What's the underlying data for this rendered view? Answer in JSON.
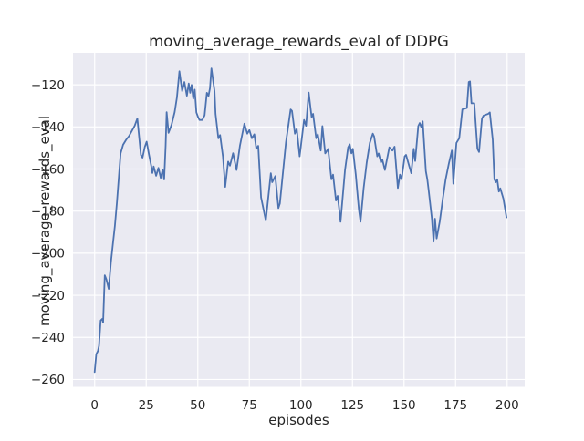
{
  "chart_data": {
    "type": "line",
    "title": "moving_average_rewards_eval of DDPG",
    "xlabel": "episodes",
    "ylabel": "moving_average_rewards_eval",
    "x_ticks": [
      0,
      25,
      50,
      75,
      100,
      125,
      150,
      175,
      200
    ],
    "y_ticks": [
      -120,
      -140,
      -160,
      -180,
      -200,
      -220,
      -240,
      -260
    ],
    "xlim": [
      -10.5,
      208.5
    ],
    "ylim": [
      -263.5,
      -104.8
    ],
    "grid": true,
    "legend": false,
    "style": "seaborn-darkgrid",
    "colors": {
      "line": "#4c72b0",
      "plot_background": "#eaeaf2",
      "grid": "#ffffff",
      "text": "#262626"
    },
    "series": [
      {
        "name": "moving_average_rewards_eval",
        "points": [
          [
            0,
            -256.5
          ],
          [
            0.8,
            -248
          ],
          [
            1.6,
            -246.5
          ],
          [
            2.1,
            -244
          ],
          [
            2.9,
            -232
          ],
          [
            3.7,
            -231.2
          ],
          [
            4.1,
            -233
          ],
          [
            4.9,
            -210.5
          ],
          [
            5.7,
            -212.5
          ],
          [
            6.8,
            -217
          ],
          [
            7.9,
            -204
          ],
          [
            8.8,
            -196
          ],
          [
            9.8,
            -187
          ],
          [
            10.8,
            -176
          ],
          [
            11.7,
            -164
          ],
          [
            12.6,
            -152.5
          ],
          [
            13.8,
            -148.5
          ],
          [
            15.2,
            -146.2
          ],
          [
            16.6,
            -144.4
          ],
          [
            18,
            -142
          ],
          [
            19.4,
            -139.5
          ],
          [
            20.7,
            -136
          ],
          [
            22.4,
            -153.3
          ],
          [
            23.2,
            -154.6
          ],
          [
            24.3,
            -149.5
          ],
          [
            25.2,
            -147
          ],
          [
            26.3,
            -153
          ],
          [
            27.4,
            -158.4
          ],
          [
            28,
            -161.9
          ],
          [
            28.6,
            -158.8
          ],
          [
            29.8,
            -163.2
          ],
          [
            30.9,
            -159.5
          ],
          [
            32,
            -164.2
          ],
          [
            33,
            -160.3
          ],
          [
            33.7,
            -165
          ],
          [
            34.4,
            -149
          ],
          [
            34.9,
            -133
          ],
          [
            35.8,
            -142.8
          ],
          [
            37.3,
            -139
          ],
          [
            38.8,
            -133
          ],
          [
            39.9,
            -126
          ],
          [
            41.1,
            -113.6
          ],
          [
            42.4,
            -123
          ],
          [
            43.5,
            -118.7
          ],
          [
            44.7,
            -125.2
          ],
          [
            45.6,
            -119.4
          ],
          [
            46.3,
            -123.8
          ],
          [
            47,
            -120.1
          ],
          [
            47.8,
            -126.6
          ],
          [
            48.5,
            -122.3
          ],
          [
            49.3,
            -133.1
          ],
          [
            50.1,
            -135.3
          ],
          [
            50.8,
            -136.7
          ],
          [
            52.2,
            -136.7
          ],
          [
            53.3,
            -134.5
          ],
          [
            54.4,
            -123.8
          ],
          [
            55.2,
            -125.3
          ],
          [
            55.9,
            -121.6
          ],
          [
            56.6,
            -112.2
          ],
          [
            58.1,
            -123
          ],
          [
            58.6,
            -133.8
          ],
          [
            60,
            -145.4
          ],
          [
            60.8,
            -143.9
          ],
          [
            62.2,
            -154
          ],
          [
            63.3,
            -168.5
          ],
          [
            64.7,
            -156.5
          ],
          [
            65.6,
            -158.4
          ],
          [
            67.1,
            -152.5
          ],
          [
            68.8,
            -160.5
          ],
          [
            70.4,
            -149
          ],
          [
            72.6,
            -138.5
          ],
          [
            74,
            -143.2
          ],
          [
            75,
            -141.5
          ],
          [
            76.2,
            -145.4
          ],
          [
            77.4,
            -143.5
          ],
          [
            78.4,
            -150.4
          ],
          [
            79.3,
            -149
          ],
          [
            80.7,
            -173.5
          ],
          [
            83,
            -184.5
          ],
          [
            85.4,
            -162
          ],
          [
            86.1,
            -166.3
          ],
          [
            87.6,
            -163.4
          ],
          [
            89.1,
            -178.6
          ],
          [
            89.8,
            -176.4
          ],
          [
            92.7,
            -147.6
          ],
          [
            95,
            -131.7
          ],
          [
            95.7,
            -132.4
          ],
          [
            97.1,
            -143.2
          ],
          [
            98,
            -141
          ],
          [
            99.4,
            -154
          ],
          [
            101.5,
            -136.7
          ],
          [
            102.5,
            -139.5
          ],
          [
            103.8,
            -123.7
          ],
          [
            105.2,
            -135.3
          ],
          [
            105.9,
            -133.8
          ],
          [
            107.4,
            -145.4
          ],
          [
            108.2,
            -143.5
          ],
          [
            109.6,
            -151.2
          ],
          [
            110.4,
            -139.6
          ],
          [
            111.8,
            -152.6
          ],
          [
            113.2,
            -150.5
          ],
          [
            114.8,
            -164.9
          ],
          [
            115.6,
            -162.7
          ],
          [
            117,
            -175
          ],
          [
            117.8,
            -172.8
          ],
          [
            118.5,
            -178.6
          ],
          [
            119.2,
            -185.1
          ],
          [
            121.4,
            -160.5
          ],
          [
            122.9,
            -149.7
          ],
          [
            123.7,
            -148.3
          ],
          [
            124.5,
            -152.6
          ],
          [
            125.2,
            -150.4
          ],
          [
            126.6,
            -162.7
          ],
          [
            128.1,
            -179.3
          ],
          [
            128.9,
            -185.1
          ],
          [
            130.4,
            -169.2
          ],
          [
            131.9,
            -156.9
          ],
          [
            133.4,
            -147.6
          ],
          [
            134.9,
            -143.2
          ],
          [
            135.5,
            -144.5
          ],
          [
            137,
            -154
          ],
          [
            137.7,
            -152.6
          ],
          [
            138.8,
            -156.9
          ],
          [
            139.5,
            -155.4
          ],
          [
            140.7,
            -160.5
          ],
          [
            142.9,
            -149.7
          ],
          [
            144.4,
            -151.2
          ],
          [
            145.4,
            -149.4
          ],
          [
            147,
            -169
          ],
          [
            148,
            -162.7
          ],
          [
            148.8,
            -164.9
          ],
          [
            150.3,
            -154
          ],
          [
            151,
            -153.3
          ],
          [
            152,
            -156.9
          ],
          [
            153.5,
            -162
          ],
          [
            154.7,
            -150.4
          ],
          [
            155.4,
            -156.2
          ],
          [
            156.9,
            -139.6
          ],
          [
            157.6,
            -138.2
          ],
          [
            158.4,
            -140.3
          ],
          [
            159.1,
            -137.4
          ],
          [
            160.6,
            -161
          ],
          [
            161.3,
            -164.9
          ],
          [
            161.9,
            -169.9
          ],
          [
            163.5,
            -183.6
          ],
          [
            164.3,
            -194.5
          ],
          [
            165,
            -183.6
          ],
          [
            165.8,
            -193
          ],
          [
            167.3,
            -185
          ],
          [
            168.7,
            -175
          ],
          [
            170.2,
            -164.9
          ],
          [
            171.7,
            -157.6
          ],
          [
            173.2,
            -151.2
          ],
          [
            173.9,
            -167
          ],
          [
            175.4,
            -147.6
          ],
          [
            176.8,
            -145.4
          ],
          [
            178.3,
            -131.7
          ],
          [
            180.5,
            -131
          ],
          [
            181.4,
            -118.7
          ],
          [
            182,
            -118.4
          ],
          [
            182.7,
            -128.8
          ],
          [
            184.1,
            -128.8
          ],
          [
            185.6,
            -150.4
          ],
          [
            186.4,
            -151.9
          ],
          [
            187.8,
            -136
          ],
          [
            188.6,
            -134.6
          ],
          [
            190.8,
            -133.8
          ],
          [
            191.6,
            -133.1
          ],
          [
            193,
            -146.1
          ],
          [
            193.8,
            -164.9
          ],
          [
            194.5,
            -166.3
          ],
          [
            195.2,
            -164.9
          ],
          [
            196,
            -170.7
          ],
          [
            196.7,
            -169.2
          ],
          [
            198.2,
            -174.2
          ],
          [
            199.7,
            -183
          ]
        ]
      }
    ]
  }
}
